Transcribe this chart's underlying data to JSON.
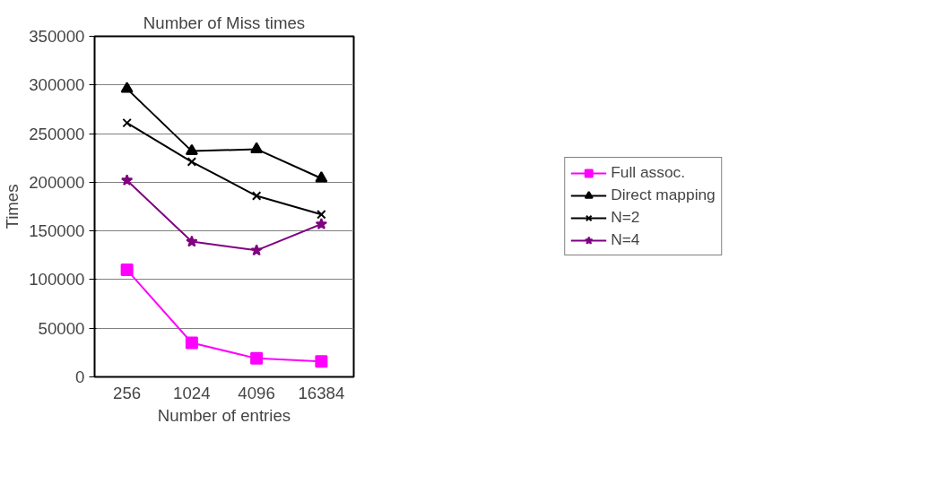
{
  "chart_data": {
    "type": "line",
    "title": "Number of Miss times",
    "xlabel": "Number of entries",
    "ylabel": "Times",
    "categories": [
      "256",
      "1024",
      "4096",
      "16384"
    ],
    "series": [
      {
        "name": "Full assoc.",
        "color": "#ff00ff",
        "marker": "square",
        "values": [
          110000,
          35000,
          19000,
          16000
        ]
      },
      {
        "name": "Direct mapping",
        "color": "#000000",
        "marker": "triangle",
        "values": [
          296000,
          232000,
          234000,
          204000
        ]
      },
      {
        "name": "N=2",
        "color": "#000000",
        "marker": "cross",
        "values": [
          261000,
          221000,
          186000,
          167000
        ]
      },
      {
        "name": "N=4",
        "color": "#800080",
        "marker": "star",
        "values": [
          202000,
          139000,
          130000,
          157000
        ]
      }
    ],
    "ylim": [
      0,
      350000
    ],
    "yticks": [
      0,
      50000,
      100000,
      150000,
      200000,
      250000,
      300000,
      350000
    ],
    "grid": "y",
    "legend": "right",
    "line_style": "solid"
  }
}
